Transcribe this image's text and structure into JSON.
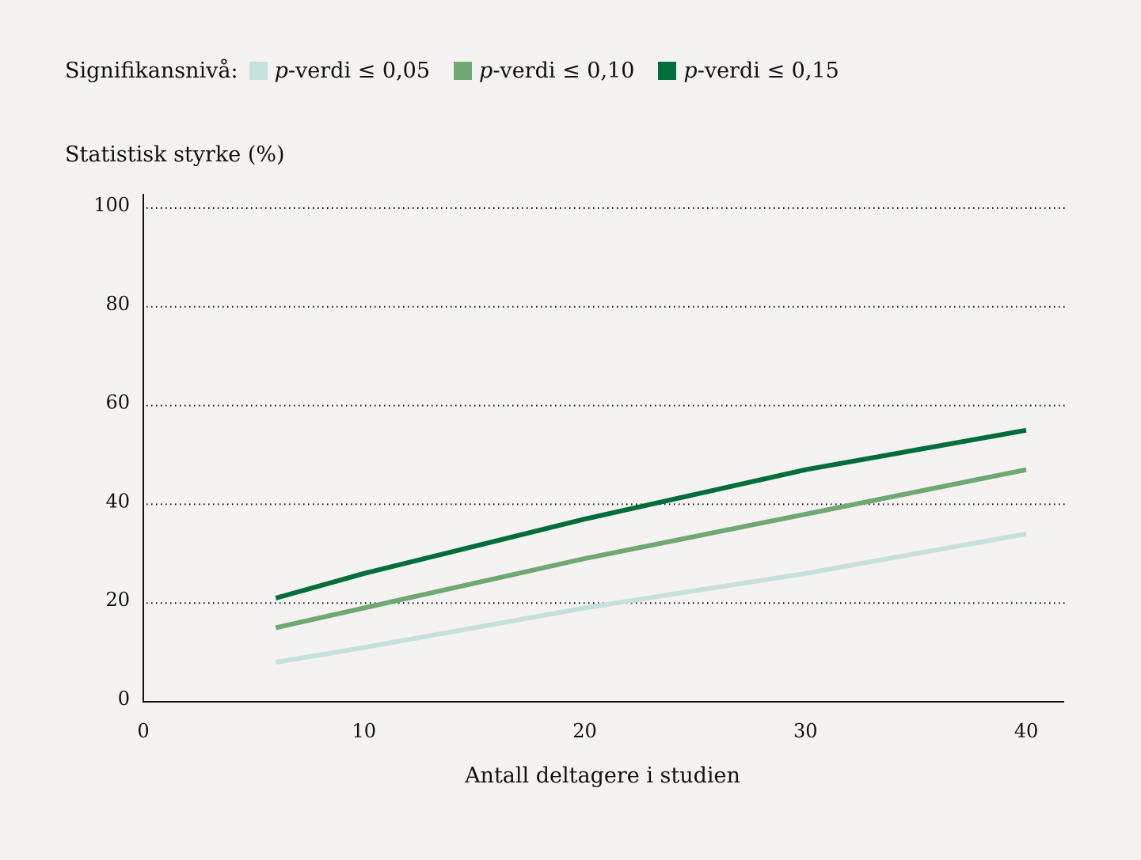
{
  "legend": {
    "title": "Signifikansnivå:",
    "items": [
      {
        "p": "p",
        "label": "-verdi ≤ 0,05",
        "color": "#c6e0db"
      },
      {
        "p": "p",
        "label": "-verdi ≤ 0,10",
        "color": "#6fa873"
      },
      {
        "p": "p",
        "label": "-verdi ≤ 0,15",
        "color": "#016d3b"
      }
    ]
  },
  "axes": {
    "ylabel": "Statistisk styrke (%)",
    "xlabel": "Antall deltagere i studien"
  },
  "chart_data": {
    "type": "line",
    "title": "",
    "xlabel": "Antall deltagere i studien",
    "ylabel": "Statistisk styrke (%)",
    "xlim": [
      0,
      42
    ],
    "ylim": [
      0,
      100
    ],
    "xticks": [
      0,
      10,
      20,
      30,
      40
    ],
    "yticks": [
      0,
      20,
      40,
      60,
      80,
      100
    ],
    "grid": "horizontal dotted",
    "legend_position": "top-left",
    "x": [
      6,
      10,
      20,
      30,
      40
    ],
    "series": [
      {
        "name": "p-verdi ≤ 0,05",
        "color": "#c6e0db",
        "values": [
          8,
          11,
          19,
          26,
          34
        ]
      },
      {
        "name": "p-verdi ≤ 0,10",
        "color": "#6fa873",
        "values": [
          15,
          19,
          29,
          38,
          47
        ]
      },
      {
        "name": "p-verdi ≤ 0,15",
        "color": "#016d3b",
        "values": [
          21,
          26,
          37,
          47,
          55
        ]
      }
    ]
  }
}
